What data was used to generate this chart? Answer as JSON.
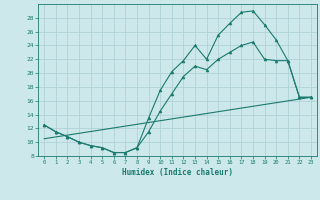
{
  "line1_x": [
    0,
    1,
    2,
    3,
    4,
    5,
    6,
    7,
    8,
    9,
    10,
    11,
    12,
    13,
    14,
    15,
    16,
    17,
    18,
    19,
    20,
    21,
    22,
    23
  ],
  "line1_y": [
    12.5,
    11.5,
    10.8,
    10.0,
    9.5,
    9.2,
    8.5,
    8.5,
    9.2,
    13.5,
    17.5,
    20.2,
    21.8,
    24.0,
    22.0,
    25.5,
    27.2,
    28.8,
    29.0,
    27.0,
    24.8,
    21.8,
    16.5,
    16.5
  ],
  "line2_x": [
    0,
    1,
    2,
    3,
    4,
    5,
    6,
    7,
    8,
    9,
    10,
    11,
    12,
    13,
    14,
    15,
    16,
    17,
    18,
    19,
    20,
    21,
    22,
    23
  ],
  "line2_y": [
    12.5,
    11.5,
    10.8,
    10.0,
    9.5,
    9.2,
    8.5,
    8.5,
    9.2,
    11.5,
    14.5,
    17.0,
    19.5,
    21.0,
    20.5,
    22.0,
    23.0,
    24.0,
    24.5,
    22.0,
    21.8,
    21.8,
    16.5,
    16.5
  ],
  "line3_x": [
    0,
    23
  ],
  "line3_y": [
    10.5,
    16.5
  ],
  "color": "#1a7a6e",
  "bg_color": "#cce8ea",
  "grid_color": "#aacfd4",
  "xlabel": "Humidex (Indice chaleur)",
  "ylim": [
    8,
    30
  ],
  "xlim": [
    -0.5,
    23.5
  ],
  "yticks": [
    8,
    10,
    12,
    14,
    16,
    18,
    20,
    22,
    24,
    26,
    28
  ],
  "xticks": [
    0,
    1,
    2,
    3,
    4,
    5,
    6,
    7,
    8,
    9,
    10,
    11,
    12,
    13,
    14,
    15,
    16,
    17,
    18,
    19,
    20,
    21,
    22,
    23
  ],
  "markersize": 2.0,
  "linewidth": 0.8
}
